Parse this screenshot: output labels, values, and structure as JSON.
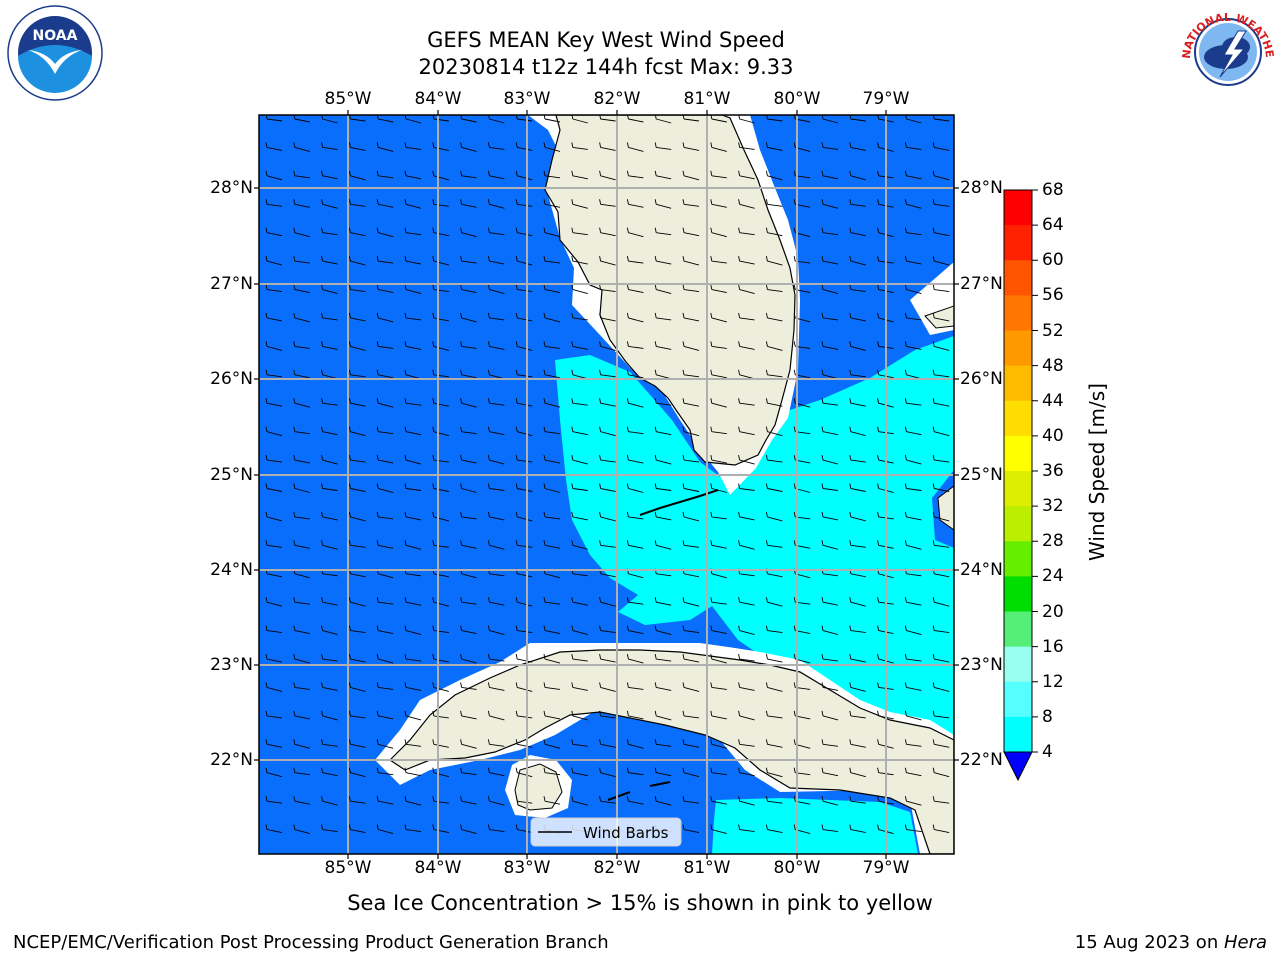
{
  "title": {
    "line1": "GEFS MEAN Key West Wind Speed",
    "line2": "20230814 t12z 144h fcst   Max: 9.33"
  },
  "map": {
    "lon_labels": [
      "85°W",
      "84°W",
      "83°W",
      "82°W",
      "81°W",
      "80°W",
      "79°W"
    ],
    "lat_labels": [
      "28°N",
      "27°N",
      "26°N",
      "25°N",
      "24°N",
      "23°N",
      "22°N"
    ],
    "legend_label": "Wind Barbs",
    "colors": {
      "ocean_low": "#0a6efc",
      "ocean_mid": "#00ffff",
      "land": "#eeeedd",
      "grid": "#b0b0b0"
    }
  },
  "colorbar": {
    "label": "Wind Speed [m/s]",
    "ticks": [
      "68",
      "64",
      "60",
      "56",
      "52",
      "48",
      "44",
      "40",
      "36",
      "32",
      "28",
      "24",
      "20",
      "16",
      "12",
      "8",
      "4"
    ],
    "colors": [
      "#ff0000",
      "#ff2200",
      "#ff5500",
      "#ff7700",
      "#ff9900",
      "#ffbb00",
      "#ffdd00",
      "#ffff00",
      "#ddee00",
      "#bbee00",
      "#66ee00",
      "#00dd00",
      "#55ee77",
      "#99ffee",
      "#55ffff",
      "#00ffff",
      "#0a6efc"
    ],
    "under_color": "#0000ff"
  },
  "note": "Sea Ice Concentration > 15% is shown in pink to yellow",
  "footer": {
    "left": "NCEP/EMC/Verification Post Processing Product Generation Branch",
    "right_prefix": "15 Aug 2023 on ",
    "right_host": "Hera"
  },
  "logos": {
    "noaa_text": "NOAA",
    "nws_text": "NATIONAL WEATHER SERVICE"
  }
}
